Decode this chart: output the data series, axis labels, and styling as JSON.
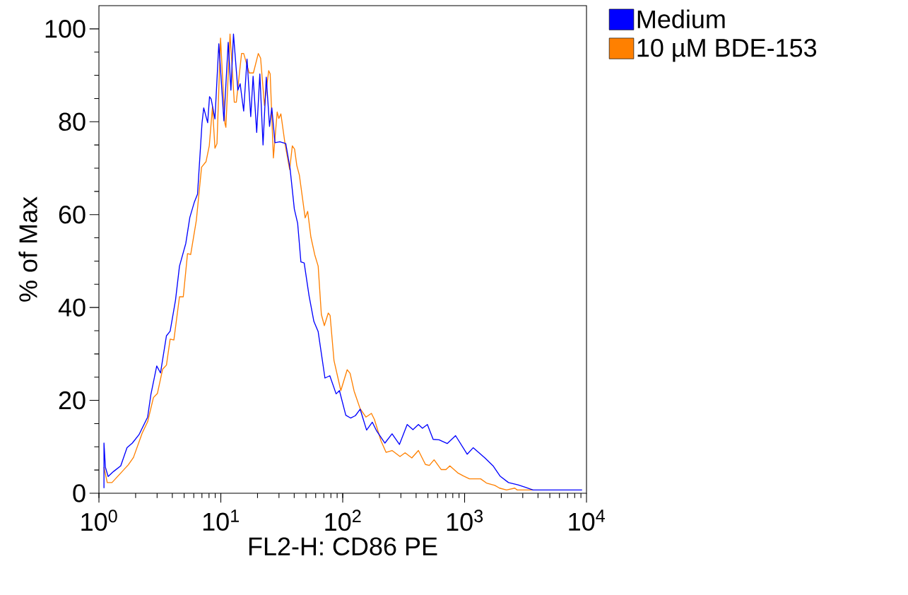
{
  "chart_data": {
    "type": "line",
    "xlabel": "FL2-H: CD86 PE",
    "ylabel": "% of Max",
    "log": "x",
    "legend": "top right",
    "xlim": [
      1,
      10000
    ],
    "ylim": [
      0,
      105
    ],
    "xticks": [
      {
        "value": 1,
        "label": "10$^{0}$"
      },
      {
        "value": 10,
        "label": "10$^{1}$"
      },
      {
        "value": 100,
        "label": "10$^{2}$"
      },
      {
        "value": 1000,
        "label": "10$^{3}$"
      },
      {
        "value": 10000,
        "label": "10$^{4}$"
      }
    ],
    "yticks": [
      0,
      20,
      40,
      60,
      80,
      100
    ],
    "series": [
      {
        "name": "10 µM BDE-153",
        "color": "#ff8000",
        "x": [
          1.1,
          1.17,
          1.28,
          1.74,
          1.92,
          2.26,
          2.51,
          2.8,
          3.02,
          3.33,
          3.58,
          3.84,
          4.12,
          4.58,
          4.92,
          5.33,
          5.66,
          6.3,
          6.95,
          7.56,
          8.04,
          8.54,
          8.95,
          9.3,
          9.95,
          10.8,
          11.0,
          11.9,
          12.9,
          13.4,
          14.8,
          15.4,
          17.1,
          18.5,
          20.3,
          21.2,
          22.8,
          24.7,
          25.4,
          27.0,
          29.0,
          29.9,
          31.1,
          33.7,
          36.7,
          38.6,
          40.3,
          42.0,
          44.1,
          49.2,
          51.6,
          54.8,
          58.9,
          62.9,
          66.8,
          70.7,
          76.1,
          78.8,
          84.8,
          96.5,
          108.8,
          115,
          124,
          139,
          155,
          172,
          182,
          206,
          227,
          254,
          295,
          325,
          369,
          418,
          477,
          514,
          562,
          642,
          703,
          757,
          877,
          980,
          1096,
          1354,
          1511,
          1770,
          1935,
          2210,
          2580,
          2700,
          3640
        ],
        "values": [
          5.6,
          2.3,
          2.3,
          6.1,
          7.7,
          12.9,
          15.4,
          20.6,
          21.5,
          26.7,
          27.6,
          33.2,
          33.0,
          42.3,
          42.3,
          51.6,
          51.4,
          58.8,
          70.2,
          71.4,
          74.8,
          83.2,
          74.3,
          75.3,
          98.0,
          79.7,
          78.8,
          98.9,
          84.2,
          84.2,
          94.7,
          94.7,
          90.5,
          90.5,
          94.7,
          93.7,
          83.5,
          91.0,
          90.3,
          72.2,
          82.1,
          80.7,
          81.7,
          75.1,
          69.7,
          74.8,
          74.1,
          70.6,
          68.5,
          59.3,
          60.7,
          55.2,
          51.4,
          48.9,
          38.5,
          36.1,
          38.8,
          38.3,
          28.6,
          22.1,
          26.6,
          25.8,
          22.0,
          18.2,
          16.4,
          17.2,
          15.9,
          11.3,
          8.8,
          9.2,
          7.9,
          8.7,
          7.6,
          9.2,
          6.2,
          6.0,
          7.2,
          5.1,
          5.1,
          5.9,
          4.4,
          3.7,
          3.1,
          3.1,
          2.2,
          1.7,
          1.1,
          0.7,
          1.1,
          0.7,
          0.7
        ]
      },
      {
        "name": "Medium",
        "color": "#0000ff",
        "x": [
          1.1,
          1.1,
          1.13,
          1.19,
          1.32,
          1.51,
          1.7,
          1.88,
          2.13,
          2.51,
          2.67,
          2.98,
          3.2,
          3.58,
          3.84,
          4.25,
          4.58,
          5.16,
          5.57,
          6.05,
          6.44,
          7.01,
          7.24,
          7.8,
          8.08,
          8.33,
          8.95,
          9.63,
          10.6,
          11.5,
          12.1,
          12.7,
          13.8,
          14.4,
          15.4,
          16.4,
          17.6,
          18.4,
          19.7,
          20.9,
          22.2,
          23.6,
          25.1,
          26.2,
          27.8,
          30.5,
          34.1,
          37.0,
          40.1,
          42.7,
          45.4,
          48.3,
          52.9,
          58,
          62.9,
          71.5,
          78.4,
          88.3,
          94,
          106,
          116,
          127,
          139,
          157,
          175,
          190,
          222,
          254,
          292,
          338,
          377,
          418,
          451,
          495,
          552,
          617,
          720,
          843,
          1051,
          1175,
          1467,
          1711,
          1953,
          2290,
          2740,
          3130,
          3640,
          9200
        ],
        "values": [
          1.1,
          10.8,
          5.6,
          3.6,
          4.7,
          5.9,
          9.8,
          10.8,
          12.6,
          16.4,
          21.3,
          27.4,
          25.9,
          33.9,
          34.9,
          41.6,
          48.9,
          53.8,
          59.4,
          62.6,
          64.4,
          79.7,
          83.0,
          79.8,
          85.4,
          84.9,
          80.6,
          96.8,
          80.2,
          97.1,
          86.8,
          98.9,
          86.8,
          88.2,
          82.3,
          93.5,
          81.1,
          89.8,
          77.7,
          90.3,
          75.0,
          89.6,
          79.0,
          83.0,
          75.5,
          75.7,
          75.3,
          69.9,
          61.2,
          58.1,
          49.8,
          49.6,
          42.6,
          37.0,
          34.8,
          24.8,
          25.3,
          21.4,
          22.1,
          16.8,
          16.2,
          16.7,
          18.1,
          13.6,
          15.3,
          13.4,
          10.8,
          12.8,
          10.5,
          14.8,
          13.7,
          14.8,
          14.0,
          14.8,
          11.6,
          11.5,
          10.7,
          12.4,
          8.4,
          9.8,
          7.6,
          5.9,
          3.7,
          2.3,
          1.8,
          1.3,
          0.7,
          0.7
        ]
      }
    ]
  }
}
